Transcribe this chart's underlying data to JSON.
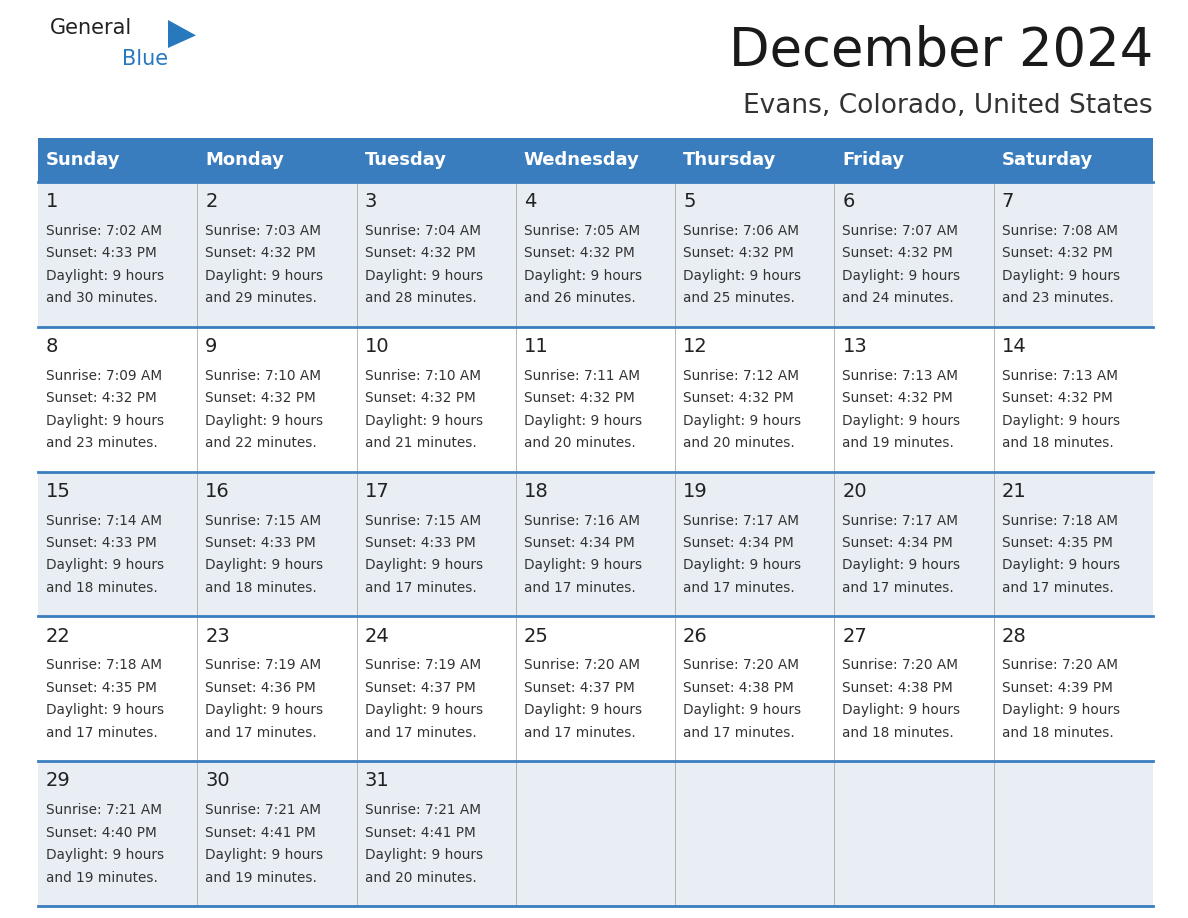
{
  "title": "December 2024",
  "subtitle": "Evans, Colorado, United States",
  "header_color": "#3a7dbf",
  "header_text_color": "#ffffff",
  "cell_bg_color": "#e8eef4",
  "cell_bg_white": "#ffffff",
  "border_color": "#3a7dbf",
  "separator_color": "#aaaaaa",
  "day_names": [
    "Sunday",
    "Monday",
    "Tuesday",
    "Wednesday",
    "Thursday",
    "Friday",
    "Saturday"
  ],
  "title_fontsize": 38,
  "subtitle_fontsize": 19,
  "header_fontsize": 13,
  "day_num_fontsize": 14,
  "cell_fontsize": 9.8,
  "days": [
    {
      "day": 1,
      "col": 0,
      "row": 0,
      "sunrise": "7:02 AM",
      "sunset": "4:33 PM",
      "daylight_h": "9 hours",
      "daylight_m": "30 minutes."
    },
    {
      "day": 2,
      "col": 1,
      "row": 0,
      "sunrise": "7:03 AM",
      "sunset": "4:32 PM",
      "daylight_h": "9 hours",
      "daylight_m": "29 minutes."
    },
    {
      "day": 3,
      "col": 2,
      "row": 0,
      "sunrise": "7:04 AM",
      "sunset": "4:32 PM",
      "daylight_h": "9 hours",
      "daylight_m": "28 minutes."
    },
    {
      "day": 4,
      "col": 3,
      "row": 0,
      "sunrise": "7:05 AM",
      "sunset": "4:32 PM",
      "daylight_h": "9 hours",
      "daylight_m": "26 minutes."
    },
    {
      "day": 5,
      "col": 4,
      "row": 0,
      "sunrise": "7:06 AM",
      "sunset": "4:32 PM",
      "daylight_h": "9 hours",
      "daylight_m": "25 minutes."
    },
    {
      "day": 6,
      "col": 5,
      "row": 0,
      "sunrise": "7:07 AM",
      "sunset": "4:32 PM",
      "daylight_h": "9 hours",
      "daylight_m": "24 minutes."
    },
    {
      "day": 7,
      "col": 6,
      "row": 0,
      "sunrise": "7:08 AM",
      "sunset": "4:32 PM",
      "daylight_h": "9 hours",
      "daylight_m": "23 minutes."
    },
    {
      "day": 8,
      "col": 0,
      "row": 1,
      "sunrise": "7:09 AM",
      "sunset": "4:32 PM",
      "daylight_h": "9 hours",
      "daylight_m": "23 minutes."
    },
    {
      "day": 9,
      "col": 1,
      "row": 1,
      "sunrise": "7:10 AM",
      "sunset": "4:32 PM",
      "daylight_h": "9 hours",
      "daylight_m": "22 minutes."
    },
    {
      "day": 10,
      "col": 2,
      "row": 1,
      "sunrise": "7:10 AM",
      "sunset": "4:32 PM",
      "daylight_h": "9 hours",
      "daylight_m": "21 minutes."
    },
    {
      "day": 11,
      "col": 3,
      "row": 1,
      "sunrise": "7:11 AM",
      "sunset": "4:32 PM",
      "daylight_h": "9 hours",
      "daylight_m": "20 minutes."
    },
    {
      "day": 12,
      "col": 4,
      "row": 1,
      "sunrise": "7:12 AM",
      "sunset": "4:32 PM",
      "daylight_h": "9 hours",
      "daylight_m": "20 minutes."
    },
    {
      "day": 13,
      "col": 5,
      "row": 1,
      "sunrise": "7:13 AM",
      "sunset": "4:32 PM",
      "daylight_h": "9 hours",
      "daylight_m": "19 minutes."
    },
    {
      "day": 14,
      "col": 6,
      "row": 1,
      "sunrise": "7:13 AM",
      "sunset": "4:32 PM",
      "daylight_h": "9 hours",
      "daylight_m": "18 minutes."
    },
    {
      "day": 15,
      "col": 0,
      "row": 2,
      "sunrise": "7:14 AM",
      "sunset": "4:33 PM",
      "daylight_h": "9 hours",
      "daylight_m": "18 minutes."
    },
    {
      "day": 16,
      "col": 1,
      "row": 2,
      "sunrise": "7:15 AM",
      "sunset": "4:33 PM",
      "daylight_h": "9 hours",
      "daylight_m": "18 minutes."
    },
    {
      "day": 17,
      "col": 2,
      "row": 2,
      "sunrise": "7:15 AM",
      "sunset": "4:33 PM",
      "daylight_h": "9 hours",
      "daylight_m": "17 minutes."
    },
    {
      "day": 18,
      "col": 3,
      "row": 2,
      "sunrise": "7:16 AM",
      "sunset": "4:34 PM",
      "daylight_h": "9 hours",
      "daylight_m": "17 minutes."
    },
    {
      "day": 19,
      "col": 4,
      "row": 2,
      "sunrise": "7:17 AM",
      "sunset": "4:34 PM",
      "daylight_h": "9 hours",
      "daylight_m": "17 minutes."
    },
    {
      "day": 20,
      "col": 5,
      "row": 2,
      "sunrise": "7:17 AM",
      "sunset": "4:34 PM",
      "daylight_h": "9 hours",
      "daylight_m": "17 minutes."
    },
    {
      "day": 21,
      "col": 6,
      "row": 2,
      "sunrise": "7:18 AM",
      "sunset": "4:35 PM",
      "daylight_h": "9 hours",
      "daylight_m": "17 minutes."
    },
    {
      "day": 22,
      "col": 0,
      "row": 3,
      "sunrise": "7:18 AM",
      "sunset": "4:35 PM",
      "daylight_h": "9 hours",
      "daylight_m": "17 minutes."
    },
    {
      "day": 23,
      "col": 1,
      "row": 3,
      "sunrise": "7:19 AM",
      "sunset": "4:36 PM",
      "daylight_h": "9 hours",
      "daylight_m": "17 minutes."
    },
    {
      "day": 24,
      "col": 2,
      "row": 3,
      "sunrise": "7:19 AM",
      "sunset": "4:37 PM",
      "daylight_h": "9 hours",
      "daylight_m": "17 minutes."
    },
    {
      "day": 25,
      "col": 3,
      "row": 3,
      "sunrise": "7:20 AM",
      "sunset": "4:37 PM",
      "daylight_h": "9 hours",
      "daylight_m": "17 minutes."
    },
    {
      "day": 26,
      "col": 4,
      "row": 3,
      "sunrise": "7:20 AM",
      "sunset": "4:38 PM",
      "daylight_h": "9 hours",
      "daylight_m": "17 minutes."
    },
    {
      "day": 27,
      "col": 5,
      "row": 3,
      "sunrise": "7:20 AM",
      "sunset": "4:38 PM",
      "daylight_h": "9 hours",
      "daylight_m": "18 minutes."
    },
    {
      "day": 28,
      "col": 6,
      "row": 3,
      "sunrise": "7:20 AM",
      "sunset": "4:39 PM",
      "daylight_h": "9 hours",
      "daylight_m": "18 minutes."
    },
    {
      "day": 29,
      "col": 0,
      "row": 4,
      "sunrise": "7:21 AM",
      "sunset": "4:40 PM",
      "daylight_h": "9 hours",
      "daylight_m": "19 minutes."
    },
    {
      "day": 30,
      "col": 1,
      "row": 4,
      "sunrise": "7:21 AM",
      "sunset": "4:41 PM",
      "daylight_h": "9 hours",
      "daylight_m": "19 minutes."
    },
    {
      "day": 31,
      "col": 2,
      "row": 4,
      "sunrise": "7:21 AM",
      "sunset": "4:41 PM",
      "daylight_h": "9 hours",
      "daylight_m": "20 minutes."
    }
  ],
  "num_rows": 5,
  "logo_general_color": "#222222",
  "logo_blue_color": "#2878be"
}
